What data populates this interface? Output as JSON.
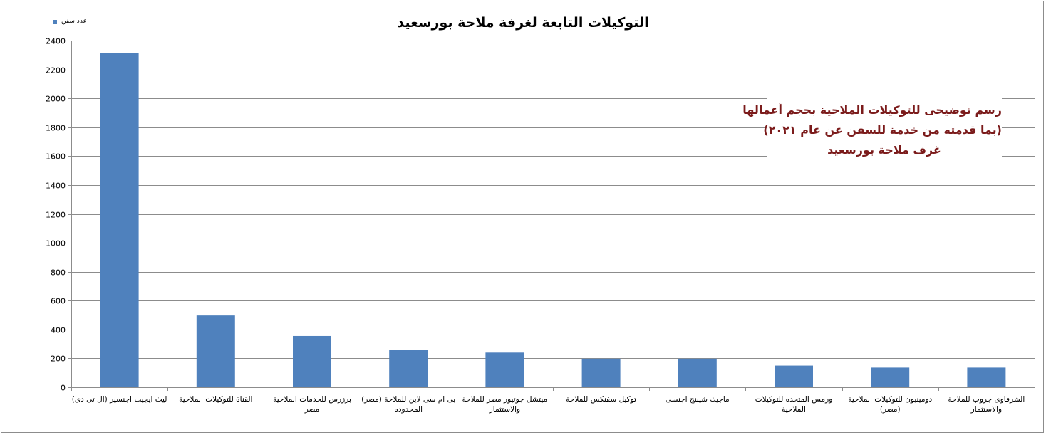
{
  "chart_data": {
    "type": "bar",
    "title": "التوكيلات التابعة لغرفة ملاحة بورسعيد",
    "legend": {
      "position": "top-left",
      "entries": [
        "عدد سفن"
      ]
    },
    "ylim": [
      0,
      2400
    ],
    "yticks": [
      0,
      200,
      400,
      600,
      800,
      1000,
      1200,
      1400,
      1600,
      1800,
      2000,
      2200,
      2400
    ],
    "grid": true,
    "categories": [
      [
        "ليث ايجيت اجنسير (ال تى دى)"
      ],
      [
        "القناة للتوكيلات الملاحية"
      ],
      [
        "برزرس للخدمات الملاحية",
        "مصر"
      ],
      [
        "بى ام سى لاين للملاحة (مصر)",
        "المحدوده"
      ],
      [
        "ميتشل جوتيور مصر للملاحة",
        "والاستثمار"
      ],
      [
        "توكيل سفنكس للملاحة"
      ],
      [
        "ماجيك شيبنج اجنسى"
      ],
      [
        "ورمس المتحده للتوكيلات",
        "الملاحية"
      ],
      [
        "دومينيون للتوكيلات الملاحية",
        "(مصر)"
      ],
      [
        "الشرقاوى جروب للملاحة",
        "والاستثمار"
      ]
    ],
    "series": [
      {
        "name": "عدد سفن",
        "color": "#4f81bd",
        "values": [
          2315,
          497,
          355,
          260,
          240,
          198,
          198,
          150,
          136,
          136
        ]
      }
    ],
    "annotation": [
      "رسم توضيحى للتوكيلات الملاحية بحجم أعمالها",
      "(بما قدمته من خدمة للسفن عن عام ٢٠٢١)",
      "غرف ملاحة بورسعيد"
    ]
  }
}
